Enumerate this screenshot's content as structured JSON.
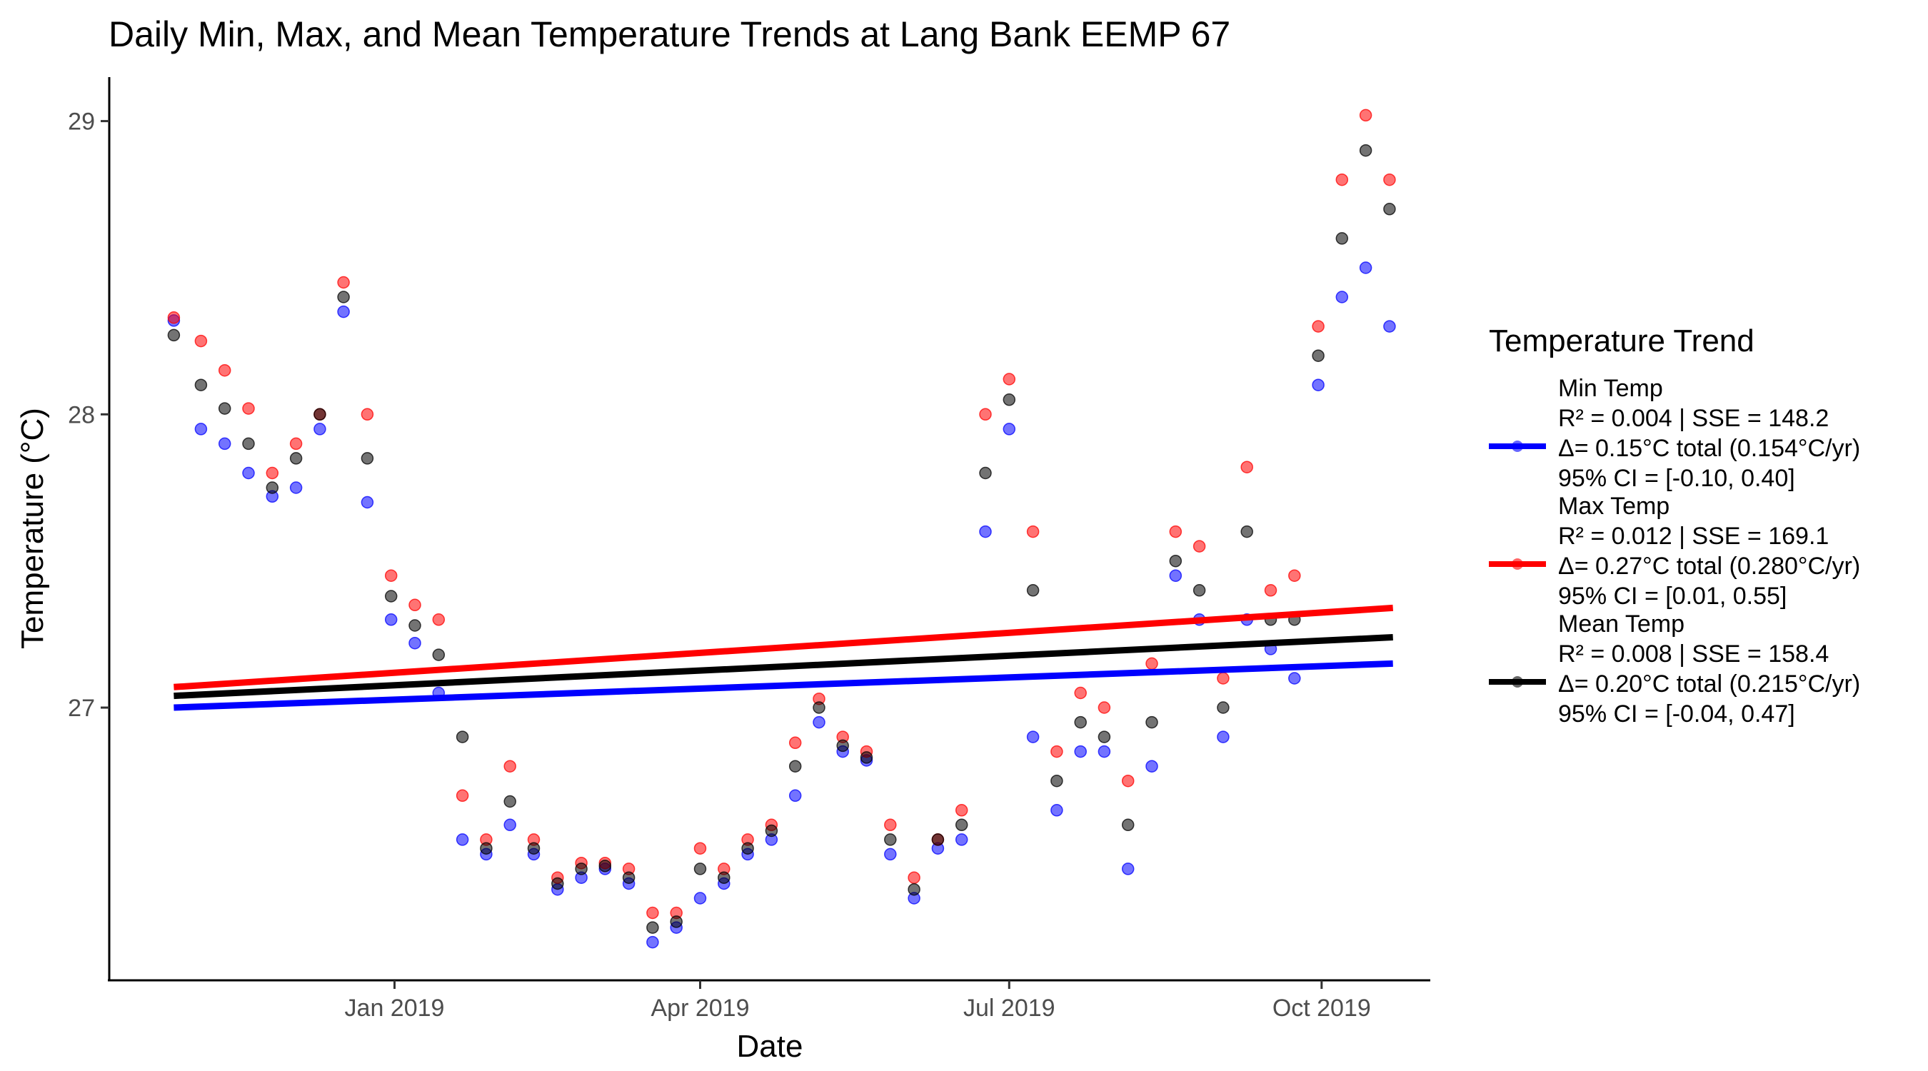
{
  "chart_data": {
    "type": "scatter",
    "title": "Daily Min, Max, and Mean Temperature Trends at Lang Bank EEMP 67",
    "xlabel": "Date",
    "ylabel": "Temperature (°C)",
    "x_ticks": [
      {
        "date": "2019-01-01",
        "label": "Jan 2019"
      },
      {
        "date": "2019-04-01",
        "label": "Apr 2019"
      },
      {
        "date": "2019-07-01",
        "label": "Jul 2019"
      },
      {
        "date": "2019-10-01",
        "label": "Oct 2019"
      }
    ],
    "y_ticks": [
      {
        "value": 27,
        "label": "27"
      },
      {
        "value": 28,
        "label": "28"
      },
      {
        "value": 29,
        "label": "29"
      }
    ],
    "xlim": [
      "2018-10-09",
      "2019-11-02"
    ],
    "ylim": [
      26.07,
      29.15
    ],
    "grid": false,
    "legend": {
      "title": "Temperature Trend",
      "placement": "right"
    },
    "series": [
      {
        "name": "Min Temp",
        "color": "#0000ff",
        "legend_lines": [
          "Min Temp",
          "R² = 0.004 | SSE = 148.2",
          "Δ= 0.15°C total (0.154°C/yr)",
          "95% CI = [-0.10, 0.40]"
        ],
        "trend": {
          "x": [
            "2018-10-28",
            "2019-10-22"
          ],
          "y": [
            27.0,
            27.15
          ]
        },
        "points": [
          [
            "2018-10-28",
            28.32
          ],
          [
            "2018-11-05",
            27.95
          ],
          [
            "2018-11-12",
            27.9
          ],
          [
            "2018-11-19",
            27.8
          ],
          [
            "2018-11-26",
            27.72
          ],
          [
            "2018-12-03",
            27.75
          ],
          [
            "2018-12-10",
            27.95
          ],
          [
            "2018-12-17",
            28.35
          ],
          [
            "2018-12-24",
            27.7
          ],
          [
            "2018-12-31",
            27.3
          ],
          [
            "2019-01-07",
            27.22
          ],
          [
            "2019-01-14",
            27.05
          ],
          [
            "2019-01-21",
            26.55
          ],
          [
            "2019-01-28",
            26.5
          ],
          [
            "2019-02-04",
            26.6
          ],
          [
            "2019-02-11",
            26.5
          ],
          [
            "2019-02-18",
            26.38
          ],
          [
            "2019-02-25",
            26.42
          ],
          [
            "2019-03-04",
            26.45
          ],
          [
            "2019-03-11",
            26.4
          ],
          [
            "2019-03-18",
            26.2
          ],
          [
            "2019-03-25",
            26.25
          ],
          [
            "2019-04-01",
            26.35
          ],
          [
            "2019-04-08",
            26.4
          ],
          [
            "2019-04-15",
            26.5
          ],
          [
            "2019-04-22",
            26.55
          ],
          [
            "2019-04-29",
            26.7
          ],
          [
            "2019-05-06",
            26.95
          ],
          [
            "2019-05-13",
            26.85
          ],
          [
            "2019-05-20",
            26.82
          ],
          [
            "2019-05-27",
            26.5
          ],
          [
            "2019-06-03",
            26.35
          ],
          [
            "2019-06-10",
            26.52
          ],
          [
            "2019-06-17",
            26.55
          ],
          [
            "2019-06-24",
            27.6
          ],
          [
            "2019-07-01",
            27.95
          ],
          [
            "2019-07-08",
            26.9
          ],
          [
            "2019-07-15",
            26.65
          ],
          [
            "2019-07-22",
            26.85
          ],
          [
            "2019-07-29",
            26.85
          ],
          [
            "2019-08-05",
            26.45
          ],
          [
            "2019-08-12",
            26.8
          ],
          [
            "2019-08-19",
            27.45
          ],
          [
            "2019-08-26",
            27.3
          ],
          [
            "2019-09-02",
            26.9
          ],
          [
            "2019-09-09",
            27.3
          ],
          [
            "2019-09-16",
            27.2
          ],
          [
            "2019-09-23",
            27.1
          ],
          [
            "2019-09-30",
            28.1
          ],
          [
            "2019-10-07",
            28.4
          ],
          [
            "2019-10-14",
            28.5
          ],
          [
            "2019-10-21",
            28.3
          ]
        ]
      },
      {
        "name": "Max Temp",
        "color": "#ff0000",
        "legend_lines": [
          "Max Temp",
          "R² = 0.012 | SSE = 169.1",
          "Δ= 0.27°C total (0.280°C/yr)",
          "95% CI = [0.01, 0.55]"
        ],
        "trend": {
          "x": [
            "2018-10-28",
            "2019-10-22"
          ],
          "y": [
            27.07,
            27.34
          ]
        },
        "points": [
          [
            "2018-10-28",
            28.33
          ],
          [
            "2018-11-05",
            28.25
          ],
          [
            "2018-11-12",
            28.15
          ],
          [
            "2018-11-19",
            28.02
          ],
          [
            "2018-11-26",
            27.8
          ],
          [
            "2018-12-03",
            27.9
          ],
          [
            "2018-12-10",
            28.0
          ],
          [
            "2018-12-17",
            28.45
          ],
          [
            "2018-12-24",
            28.0
          ],
          [
            "2018-12-31",
            27.45
          ],
          [
            "2019-01-07",
            27.35
          ],
          [
            "2019-01-14",
            27.3
          ],
          [
            "2019-01-21",
            26.7
          ],
          [
            "2019-01-28",
            26.55
          ],
          [
            "2019-02-04",
            26.8
          ],
          [
            "2019-02-11",
            26.55
          ],
          [
            "2019-02-18",
            26.42
          ],
          [
            "2019-02-25",
            26.47
          ],
          [
            "2019-03-04",
            26.47
          ],
          [
            "2019-03-11",
            26.45
          ],
          [
            "2019-03-18",
            26.3
          ],
          [
            "2019-03-25",
            26.3
          ],
          [
            "2019-04-01",
            26.52
          ],
          [
            "2019-04-08",
            26.45
          ],
          [
            "2019-04-15",
            26.55
          ],
          [
            "2019-04-22",
            26.6
          ],
          [
            "2019-04-29",
            26.88
          ],
          [
            "2019-05-06",
            27.03
          ],
          [
            "2019-05-13",
            26.9
          ],
          [
            "2019-05-20",
            26.85
          ],
          [
            "2019-05-27",
            26.6
          ],
          [
            "2019-06-03",
            26.42
          ],
          [
            "2019-06-10",
            26.55
          ],
          [
            "2019-06-17",
            26.65
          ],
          [
            "2019-06-24",
            28.0
          ],
          [
            "2019-07-01",
            28.12
          ],
          [
            "2019-07-08",
            27.6
          ],
          [
            "2019-07-15",
            26.85
          ],
          [
            "2019-07-22",
            27.05
          ],
          [
            "2019-07-29",
            27.0
          ],
          [
            "2019-08-05",
            26.75
          ],
          [
            "2019-08-12",
            27.15
          ],
          [
            "2019-08-19",
            27.6
          ],
          [
            "2019-08-26",
            27.55
          ],
          [
            "2019-09-02",
            27.1
          ],
          [
            "2019-09-09",
            27.82
          ],
          [
            "2019-09-16",
            27.4
          ],
          [
            "2019-09-23",
            27.45
          ],
          [
            "2019-09-30",
            28.3
          ],
          [
            "2019-10-07",
            28.8
          ],
          [
            "2019-10-14",
            29.02
          ],
          [
            "2019-10-21",
            28.8
          ]
        ]
      },
      {
        "name": "Mean Temp",
        "color": "#000000",
        "legend_lines": [
          "Mean Temp",
          "R² = 0.008 | SSE = 158.4",
          "Δ= 0.20°C total (0.215°C/yr)",
          "95% CI = [-0.04, 0.47]"
        ],
        "trend": {
          "x": [
            "2018-10-28",
            "2019-10-22"
          ],
          "y": [
            27.04,
            27.24
          ]
        },
        "points": [
          [
            "2018-10-28",
            28.27
          ],
          [
            "2018-11-05",
            28.1
          ],
          [
            "2018-11-12",
            28.02
          ],
          [
            "2018-11-19",
            27.9
          ],
          [
            "2018-11-26",
            27.75
          ],
          [
            "2018-12-03",
            27.85
          ],
          [
            "2018-12-10",
            28.0
          ],
          [
            "2018-12-17",
            28.4
          ],
          [
            "2018-12-24",
            27.85
          ],
          [
            "2018-12-31",
            27.38
          ],
          [
            "2019-01-07",
            27.28
          ],
          [
            "2019-01-14",
            27.18
          ],
          [
            "2019-01-21",
            26.9
          ],
          [
            "2019-01-28",
            26.52
          ],
          [
            "2019-02-04",
            26.68
          ],
          [
            "2019-02-11",
            26.52
          ],
          [
            "2019-02-18",
            26.4
          ],
          [
            "2019-02-25",
            26.45
          ],
          [
            "2019-03-04",
            26.46
          ],
          [
            "2019-03-11",
            26.42
          ],
          [
            "2019-03-18",
            26.25
          ],
          [
            "2019-03-25",
            26.27
          ],
          [
            "2019-04-01",
            26.45
          ],
          [
            "2019-04-08",
            26.42
          ],
          [
            "2019-04-15",
            26.52
          ],
          [
            "2019-04-22",
            26.58
          ],
          [
            "2019-04-29",
            26.8
          ],
          [
            "2019-05-06",
            27.0
          ],
          [
            "2019-05-13",
            26.87
          ],
          [
            "2019-05-20",
            26.83
          ],
          [
            "2019-05-27",
            26.55
          ],
          [
            "2019-06-03",
            26.38
          ],
          [
            "2019-06-10",
            26.55
          ],
          [
            "2019-06-17",
            26.6
          ],
          [
            "2019-06-24",
            27.8
          ],
          [
            "2019-07-01",
            28.05
          ],
          [
            "2019-07-08",
            27.4
          ],
          [
            "2019-07-15",
            26.75
          ],
          [
            "2019-07-22",
            26.95
          ],
          [
            "2019-07-29",
            26.9
          ],
          [
            "2019-08-05",
            26.6
          ],
          [
            "2019-08-12",
            26.95
          ],
          [
            "2019-08-19",
            27.5
          ],
          [
            "2019-08-26",
            27.4
          ],
          [
            "2019-09-02",
            27.0
          ],
          [
            "2019-09-09",
            27.6
          ],
          [
            "2019-09-16",
            27.3
          ],
          [
            "2019-09-23",
            27.3
          ],
          [
            "2019-09-30",
            28.2
          ],
          [
            "2019-10-07",
            28.6
          ],
          [
            "2019-10-14",
            28.9
          ],
          [
            "2019-10-21",
            28.7
          ]
        ]
      }
    ]
  }
}
